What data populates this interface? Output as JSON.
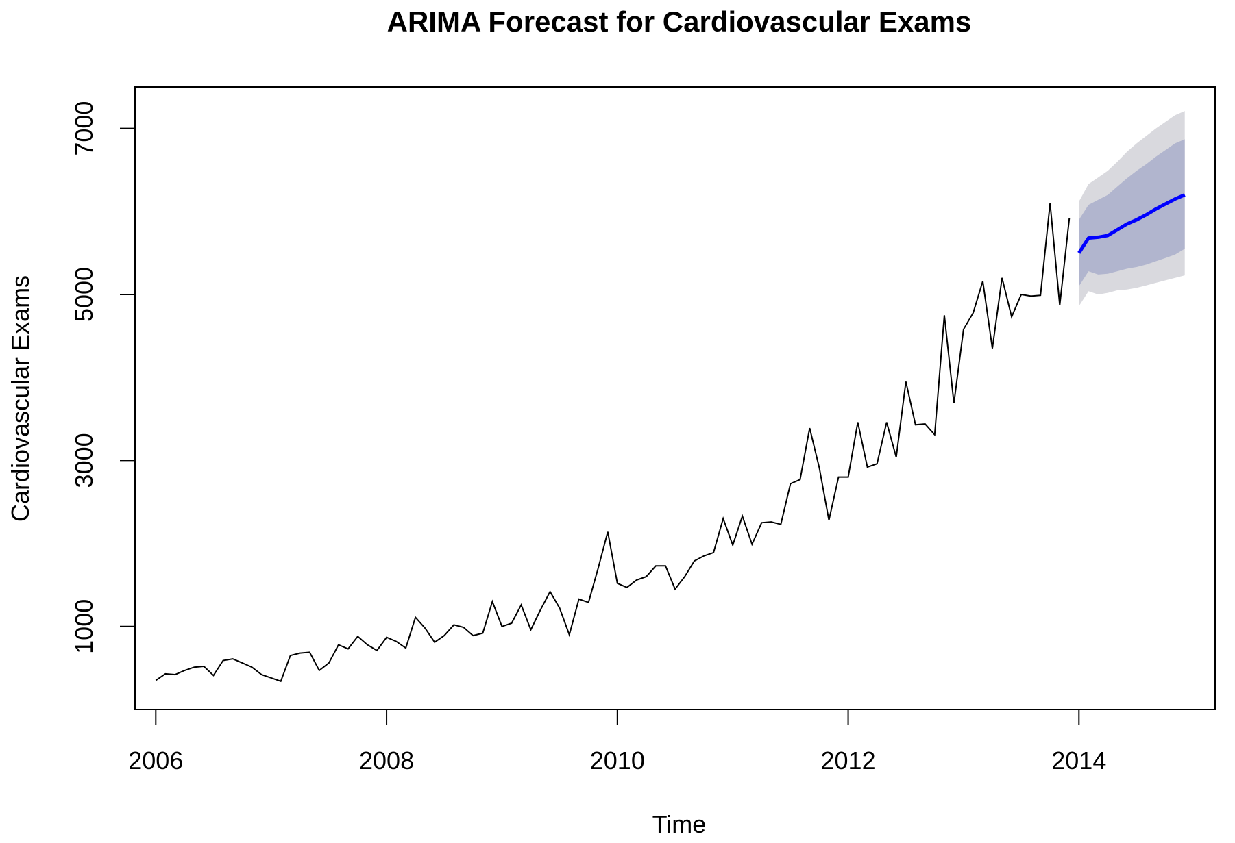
{
  "chart_data": {
    "type": "line",
    "title": "ARIMA Forecast for Cardiovascular Exams",
    "xlabel": "Time",
    "ylabel": "Cardiovascular Exams",
    "xlim": [
      2005.82,
      2015.18
    ],
    "ylim": [
      0,
      7500
    ],
    "x_ticks": [
      "2006",
      "2008",
      "2010",
      "2012",
      "2014"
    ],
    "y_ticks": [
      "1000",
      "3000",
      "5000",
      "7000"
    ],
    "grid": false,
    "colors": {
      "observed": "#000000",
      "forecast": "#0000ff",
      "pi80": "#b1b5ce",
      "pi95": "#d9d9de"
    },
    "observed": {
      "start": [
        2006,
        1
      ],
      "frequency": 12,
      "values": [
        350,
        430,
        420,
        470,
        510,
        520,
        410,
        590,
        610,
        560,
        510,
        420,
        380,
        340,
        650,
        680,
        690,
        470,
        560,
        780,
        730,
        880,
        780,
        710,
        870,
        820,
        740,
        1110,
        980,
        810,
        890,
        1020,
        990,
        890,
        920,
        1300,
        1000,
        1040,
        1260,
        960,
        1200,
        1420,
        1220,
        900,
        1330,
        1290,
        1700,
        2140,
        1520,
        1470,
        1560,
        1600,
        1730,
        1730,
        1450,
        1600,
        1790,
        1850,
        1890,
        2300,
        1980,
        2330,
        1990,
        2250,
        2260,
        2230,
        2720,
        2770,
        3390,
        2910,
        2280,
        2800,
        2800,
        3460,
        2920,
        2960,
        3460,
        3040,
        3950,
        3430,
        3440,
        3310,
        4750,
        3690,
        4580,
        4780,
        5160,
        4350,
        5200,
        4730,
        5000,
        4980,
        4990,
        6100,
        4870,
        5920
      ]
    },
    "forecast": {
      "start": [
        2014,
        1
      ],
      "frequency": 12,
      "mean": [
        5500,
        5680,
        5690,
        5710,
        5780,
        5850,
        5900,
        5960,
        6030,
        6090,
        6150,
        6200
      ],
      "lo80": [
        5100,
        5280,
        5240,
        5250,
        5280,
        5310,
        5330,
        5360,
        5400,
        5440,
        5480,
        5550
      ],
      "hi80": [
        5900,
        6080,
        6140,
        6200,
        6300,
        6400,
        6490,
        6570,
        6660,
        6740,
        6820,
        6870
      ],
      "lo95": [
        4860,
        5040,
        5000,
        5020,
        5050,
        5060,
        5080,
        5110,
        5140,
        5170,
        5200,
        5230
      ],
      "hi95": [
        6120,
        6330,
        6410,
        6490,
        6600,
        6720,
        6820,
        6910,
        7000,
        7080,
        7160,
        7210
      ]
    }
  }
}
